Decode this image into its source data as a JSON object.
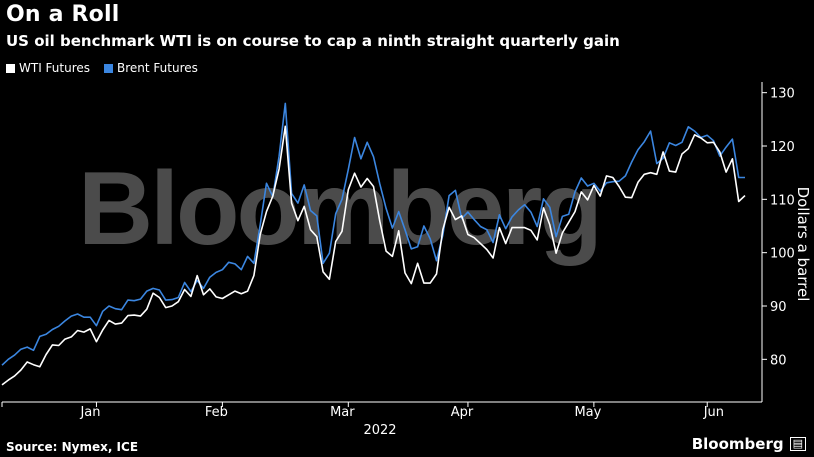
{
  "header": {
    "title": "On a Roll",
    "subtitle": "US oil benchmark WTI is on course to cap a ninth straight quarterly gain"
  },
  "legend": [
    {
      "label": "WTI Futures",
      "color": "#ffffff"
    },
    {
      "label": "Brent Futures",
      "color": "#3b86e0"
    }
  ],
  "footer": {
    "source": "Source: Nymex, ICE",
    "brand": "Bloomberg",
    "brand_icon": "bloomberg-terminal-icon"
  },
  "watermark": "Bloomberg",
  "chart_data": {
    "type": "line",
    "title": "On a Roll",
    "subtitle": "US oil benchmark WTI is on course to cap a ninth straight quarterly gain",
    "ylabel": "Dollars a barrel",
    "xlabel": "2022",
    "ylim": [
      72,
      132
    ],
    "yticks": [
      80,
      90,
      100,
      110,
      120,
      130
    ],
    "x_month_labels": [
      "Jan",
      "Feb",
      "Mar",
      "Apr",
      "May",
      "Jun"
    ],
    "x_month_positions": [
      5,
      25,
      45,
      64,
      84,
      104
    ],
    "grid": false,
    "legend_position": "top-left",
    "series": [
      {
        "name": "WTI Futures",
        "color": "#ffffff",
        "values": [
          75.2,
          76.1,
          76.9,
          78.0,
          79.5,
          79.0,
          78.6,
          80.9,
          82.7,
          82.6,
          83.8,
          84.2,
          85.4,
          85.1,
          85.7,
          83.3,
          85.5,
          87.3,
          86.6,
          86.8,
          88.2,
          88.3,
          88.1,
          89.4,
          92.4,
          91.6,
          89.7,
          90.0,
          90.8,
          93.1,
          91.8,
          95.7,
          92.1,
          93.2,
          91.7,
          91.4,
          92.1,
          92.8,
          92.3,
          92.8,
          95.7,
          103.4,
          107.7,
          110.6,
          115.7,
          123.7,
          109.3,
          106.0,
          108.7,
          104.3,
          103.0,
          96.4,
          95.0,
          102.1,
          104.0,
          111.8,
          114.9,
          112.3,
          113.9,
          112.4,
          105.9,
          100.3,
          99.3,
          104.1,
          96.2,
          94.2,
          98.0,
          94.3,
          94.3,
          96.0,
          104.3,
          108.5,
          106.2,
          106.9,
          103.4,
          102.8,
          101.7,
          100.6,
          99.0,
          104.7,
          101.7,
          104.7,
          104.7,
          104.7,
          104.2,
          102.4,
          108.4,
          105.2,
          99.9,
          103.7,
          105.7,
          107.7,
          111.4,
          109.9,
          112.6,
          110.6,
          114.4,
          114.1,
          112.4,
          110.4,
          110.3,
          113.2,
          114.7,
          115.0,
          114.7,
          118.9,
          115.3,
          115.1,
          118.5,
          119.5,
          122.1,
          121.5,
          120.6,
          120.7,
          118.9,
          115.1,
          117.6,
          109.6,
          110.7
        ]
      },
      {
        "name": "Brent Futures",
        "color": "#3b86e0",
        "values": [
          78.9,
          80.0,
          80.8,
          81.9,
          82.3,
          81.7,
          84.3,
          84.7,
          85.6,
          86.2,
          87.2,
          88.1,
          88.5,
          87.9,
          87.9,
          86.3,
          89.0,
          90.0,
          89.5,
          89.3,
          91.1,
          91.0,
          91.3,
          92.8,
          93.3,
          93.0,
          91.1,
          91.2,
          91.6,
          94.4,
          92.7,
          94.8,
          93.3,
          95.4,
          96.3,
          96.8,
          98.2,
          97.9,
          96.8,
          99.3,
          98.0,
          105.2,
          113.0,
          110.5,
          118.1,
          127.98,
          111.1,
          109.3,
          112.7,
          107.9,
          106.9,
          98.0,
          99.9,
          107.3,
          110.0,
          115.6,
          121.6,
          117.6,
          120.7,
          118.0,
          112.9,
          108.3,
          104.6,
          107.7,
          104.3,
          100.7,
          101.1,
          105.0,
          102.6,
          98.5,
          103.3,
          110.7,
          111.7,
          106.4,
          107.6,
          106.2,
          104.9,
          104.3,
          101.9,
          107.1,
          104.5,
          106.7,
          108.0,
          109.0,
          107.6,
          104.9,
          110.1,
          108.5,
          103.0,
          106.8,
          107.2,
          111.4,
          114.0,
          112.5,
          113.0,
          111.5,
          113.1,
          113.3,
          113.4,
          114.4,
          117.0,
          119.3,
          120.8,
          122.8,
          116.7,
          117.7,
          120.6,
          120.1,
          120.7,
          123.6,
          122.8,
          121.6,
          122.0,
          121.0,
          118.1,
          119.8,
          121.3,
          114.1,
          114.1
        ]
      }
    ]
  }
}
